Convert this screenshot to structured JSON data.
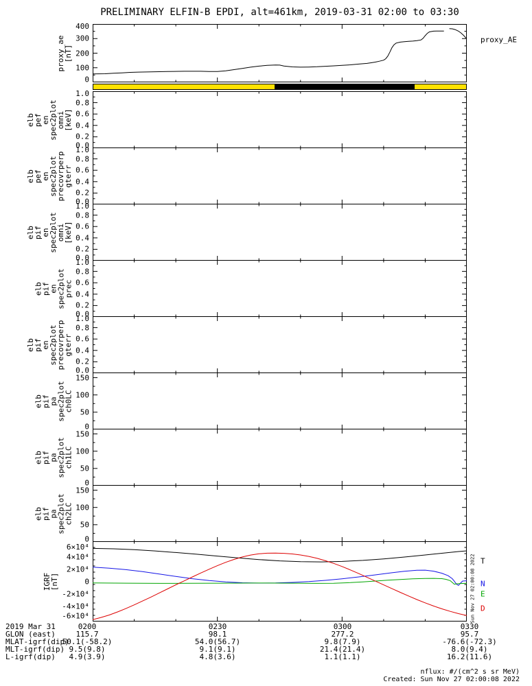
{
  "title": "PRELIMINARY ELFIN-B EPDI, alt=461km, 2019-03-31 02:00 to 03:30",
  "proxy_trace_label": "proxy_AE",
  "side_timestamp": "Sun Nov 27 02:00:08 2022",
  "colors": {
    "axis": "#000000",
    "zone_yellow": "#ffe200",
    "zone_black": "#000000",
    "trace_T": "#000000",
    "trace_N": "#1414e6",
    "trace_E": "#00a500",
    "trace_D": "#dd0000"
  },
  "x_axis": {
    "total_minutes": 90,
    "major_step_minutes": 30,
    "minor_step_minutes": 10,
    "tick_labels": [
      "0200",
      "0230",
      "0300",
      "0330"
    ]
  },
  "panels": [
    {
      "key": "proxy_ae",
      "ylabel": "proxy_ae\n[nT]",
      "ymin": 0,
      "ymax": 400,
      "yticks": [
        0,
        100,
        200,
        300,
        400
      ],
      "ytick_labels": [
        "0",
        "100",
        "200",
        "300",
        "400"
      ],
      "yminor_step": 50
    },
    {
      "key": "elb_pef_en_spec2plot_omni",
      "ylabel": "elb\npef\nen\nspec2plot\nomni\n[keV]",
      "ymin": 0,
      "ymax": 1,
      "yticks": [
        0,
        0.2,
        0.4,
        0.6,
        0.8,
        1
      ],
      "ytick_labels": [
        "0.0",
        "0.2",
        "0.4",
        "0.6",
        "0.8",
        "1.0"
      ],
      "yminor_step": 0.1
    },
    {
      "key": "elb_pef_en_spec2plot_precovrperp_gterr",
      "ylabel": "elb\npef\nen\nspec2plot\nprecovrperp\ngterr",
      "ymin": 0,
      "ymax": 1,
      "yticks": [
        0,
        0.2,
        0.4,
        0.6,
        0.8,
        1
      ],
      "ytick_labels": [
        "0.0",
        "0.2",
        "0.4",
        "0.6",
        "0.8",
        "1.0"
      ],
      "yminor_step": 0.1
    },
    {
      "key": "elb_pif_en_spec2plot_omni",
      "ylabel": "elb\npif\nen\nspec2plot\nomni\n[keV]",
      "ymin": 0,
      "ymax": 1,
      "yticks": [
        0,
        0.2,
        0.4,
        0.6,
        0.8,
        1
      ],
      "ytick_labels": [
        "0.0",
        "0.2",
        "0.4",
        "0.6",
        "0.8",
        "1.0"
      ],
      "yminor_step": 0.1
    },
    {
      "key": "elb_pif_en_spec2plot_prec",
      "ylabel": "elb\npif\nen\nspec2plot\nprec",
      "ymin": 0,
      "ymax": 1,
      "yticks": [
        0,
        0.2,
        0.4,
        0.6,
        0.8,
        1
      ],
      "ytick_labels": [
        "0.0",
        "0.2",
        "0.4",
        "0.6",
        "0.8",
        "1.0"
      ],
      "yminor_step": 0.1
    },
    {
      "key": "elb_pif_en_spec2plot_precovrperp_gterr",
      "ylabel": "elb\npif\nen\nspec2plot\nprecovrperp\ngterr",
      "ymin": 0,
      "ymax": 1,
      "yticks": [
        0,
        0.2,
        0.4,
        0.6,
        0.8,
        1
      ],
      "ytick_labels": [
        "0.0",
        "0.2",
        "0.4",
        "0.6",
        "0.8",
        "1.0"
      ],
      "yminor_step": 0.1
    },
    {
      "key": "elb_pif_pa_spec2plot_ch0LC",
      "ylabel": "elb\npif\npa\nspec2plot\nch0LC",
      "ymin": 0,
      "ymax": 165,
      "yticks": [
        0,
        50,
        100,
        150
      ],
      "ytick_labels": [
        "0",
        "50",
        "100",
        "150"
      ],
      "yminor_step": 25
    },
    {
      "key": "elb_pif_pa_spec2plot_ch1LC",
      "ylabel": "elb\npif\npa\nspec2plot\nch1LC",
      "ymin": 0,
      "ymax": 165,
      "yticks": [
        0,
        50,
        100,
        150
      ],
      "ytick_labels": [
        "0",
        "50",
        "100",
        "150"
      ],
      "yminor_step": 25
    },
    {
      "key": "elb_pif_pa_spec2plot_ch2LC",
      "ylabel": "elb\npif\npa\nspec2plot\nch2LC",
      "ymin": 0,
      "ymax": 165,
      "yticks": [
        0,
        50,
        100,
        150
      ],
      "ytick_labels": [
        "0",
        "50",
        "100",
        "150"
      ],
      "yminor_step": 25
    },
    {
      "key": "igrf",
      "ylabel": "IGRF\n[nT]",
      "ymin": -65000,
      "ymax": 65000,
      "yticks": [
        -60000,
        -40000,
        -20000,
        0,
        20000,
        40000,
        60000
      ],
      "ytick_labels": [
        "-6×10⁴",
        "-4×10⁴",
        "-2×10⁴",
        "0",
        "2×10⁴",
        "4×10⁴",
        "6×10⁴"
      ],
      "yminor_step": 10000
    }
  ],
  "zone_bar": {
    "segments": [
      {
        "start": 0,
        "end": 0.486,
        "color": "#ffe200"
      },
      {
        "start": 0.486,
        "end": 0.861,
        "color": "#000000"
      },
      {
        "start": 0.861,
        "end": 1,
        "color": "#ffe200"
      }
    ]
  },
  "igrf_trace_labels": [
    {
      "text": "T",
      "color": "#000000"
    },
    {
      "text": "N",
      "color": "#1414e6"
    },
    {
      "text": "E",
      "color": "#00a500"
    },
    {
      "text": "D",
      "color": "#dd0000"
    }
  ],
  "chart_data": [
    {
      "type": "line",
      "title": "proxy_AE",
      "ylabel": "proxy_ae [nT]",
      "ylim": [
        0,
        400
      ],
      "x_unit": "minutes after 02:00 UT, 2019-03-31",
      "xlim": [
        0,
        90
      ],
      "grid": false,
      "series": [
        {
          "name": "proxy_AE",
          "color": "#000000",
          "points": [
            [
              0,
              58
            ],
            [
              3,
              59
            ],
            [
              5,
              62
            ],
            [
              7,
              65
            ],
            [
              9,
              68
            ],
            [
              11,
              70
            ],
            [
              14,
              72
            ],
            [
              18,
              74
            ],
            [
              22,
              76
            ],
            [
              26,
              76
            ],
            [
              28,
              74
            ],
            [
              30,
              74
            ],
            [
              32,
              79
            ],
            [
              34,
              87
            ],
            [
              36,
              95
            ],
            [
              38,
              104
            ],
            [
              40,
              111
            ],
            [
              42,
              116
            ],
            [
              44,
              119
            ],
            [
              45,
              118
            ],
            [
              46,
              112
            ],
            [
              48,
              106
            ],
            [
              50,
              104
            ],
            [
              52,
              105
            ],
            [
              54,
              107
            ],
            [
              56,
              110
            ],
            [
              58,
              113
            ],
            [
              60,
              116
            ],
            [
              62,
              120
            ],
            [
              64,
              125
            ],
            [
              66,
              130
            ],
            [
              67,
              134
            ],
            [
              68,
              139
            ],
            [
              69,
              145
            ],
            [
              70,
              152
            ],
            [
              70.5,
              162
            ],
            [
              71,
              180
            ],
            [
              71.5,
              208
            ],
            [
              72,
              238
            ],
            [
              72.5,
              258
            ],
            [
              73,
              269
            ],
            [
              74,
              276
            ],
            [
              75,
              279
            ],
            [
              76,
              281
            ],
            [
              77,
              283
            ],
            [
              78,
              286
            ],
            [
              79,
              291
            ],
            [
              79.5,
              302
            ],
            [
              80,
              320
            ],
            [
              80.5,
              336
            ],
            [
              81,
              346
            ],
            [
              82,
              351
            ],
            [
              83,
              352
            ],
            [
              84.5,
              352
            ],
            null,
            [
              85.8,
              368
            ],
            [
              86.5,
              367
            ],
            [
              87.2,
              362
            ],
            [
              88,
              351
            ],
            [
              88.6,
              339
            ],
            [
              89.2,
              323
            ],
            [
              90,
              298
            ]
          ]
        }
      ]
    },
    {
      "type": "line",
      "title": "IGRF",
      "ylabel": "IGRF [nT]",
      "ylim": [
        -65000,
        65000
      ],
      "x_unit": "minutes after 02:00 UT, 2019-03-31",
      "xlim": [
        0,
        90
      ],
      "grid": false,
      "legend_position": "right",
      "series": [
        {
          "name": "T",
          "color": "#000000",
          "points": [
            [
              0,
              53500
            ],
            [
              5,
              52800
            ],
            [
              10,
              51300
            ],
            [
              15,
              49300
            ],
            [
              20,
              46800
            ],
            [
              25,
              44000
            ],
            [
              30,
              41000
            ],
            [
              35,
              38000
            ],
            [
              40,
              35300
            ],
            [
              45,
              33200
            ],
            [
              50,
              32000
            ],
            [
              55,
              31600
            ],
            [
              60,
              32300
            ],
            [
              65,
              34000
            ],
            [
              70,
              36400
            ],
            [
              75,
              39400
            ],
            [
              80,
              42800
            ],
            [
              85,
              46200
            ],
            [
              88,
              48300
            ],
            [
              90,
              49500
            ]
          ]
        },
        {
          "name": "N",
          "color": "#1414e6",
          "points": [
            [
              0,
              23000
            ],
            [
              4,
              21500
            ],
            [
              8,
              19000
            ],
            [
              12,
              15800
            ],
            [
              16,
              12000
            ],
            [
              20,
              8000
            ],
            [
              24,
              4300
            ],
            [
              28,
              1300
            ],
            [
              32,
              -900
            ],
            [
              36,
              -2200
            ],
            [
              40,
              -2800
            ],
            [
              44,
              -2600
            ],
            [
              48,
              -1700
            ],
            [
              52,
              -300
            ],
            [
              56,
              1700
            ],
            [
              60,
              4200
            ],
            [
              64,
              7200
            ],
            [
              68,
              10600
            ],
            [
              72,
              14000
            ],
            [
              75,
              16400
            ],
            [
              78,
              18000
            ],
            [
              80,
              18200
            ],
            [
              82,
              16600
            ],
            [
              84,
              13200
            ],
            [
              85.5,
              9200
            ],
            [
              86.5,
              4500
            ],
            [
              87,
              300
            ],
            [
              87.5,
              -4500
            ],
            [
              88,
              -6500
            ],
            [
              88.5,
              -2800
            ],
            [
              89,
              600
            ],
            [
              90,
              1000
            ]
          ]
        },
        {
          "name": "E",
          "color": "#00a500",
          "points": [
            [
              0,
              -2400
            ],
            [
              8,
              -2900
            ],
            [
              16,
              -3200
            ],
            [
              24,
              -3100
            ],
            [
              32,
              -2900
            ],
            [
              40,
              -2700
            ],
            [
              48,
              -2900
            ],
            [
              54,
              -3200
            ],
            [
              58,
              -3000
            ],
            [
              62,
              -2000
            ],
            [
              65,
              -800
            ],
            [
              68,
              600
            ],
            [
              71,
              1900
            ],
            [
              74,
              3100
            ],
            [
              77,
              4100
            ],
            [
              80,
              4700
            ],
            [
              82,
              4900
            ],
            [
              84,
              4400
            ],
            [
              85,
              3300
            ],
            [
              86,
              1200
            ],
            [
              86.6,
              -2200
            ],
            [
              87,
              -4600
            ],
            [
              87.6,
              -3900
            ],
            [
              88.5,
              -3400
            ],
            [
              90,
              -3100
            ]
          ]
        },
        {
          "name": "D",
          "color": "#dd0000",
          "points": [
            [
              0,
              -62000
            ],
            [
              2,
              -58500
            ],
            [
              4,
              -54500
            ],
            [
              6,
              -49500
            ],
            [
              8,
              -44000
            ],
            [
              10,
              -38000
            ],
            [
              12,
              -31800
            ],
            [
              14,
              -25400
            ],
            [
              16,
              -18800
            ],
            [
              18,
              -12200
            ],
            [
              20,
              -5600
            ],
            [
              22,
              800
            ],
            [
              24,
              7200
            ],
            [
              26,
              13600
            ],
            [
              28,
              19700
            ],
            [
              30,
              25500
            ],
            [
              32,
              30900
            ],
            [
              34,
              35600
            ],
            [
              36,
              39600
            ],
            [
              38,
              42700
            ],
            [
              40,
              44700
            ],
            [
              42,
              45700
            ],
            [
              44,
              45900
            ],
            [
              46,
              45500
            ],
            [
              48,
              44400
            ],
            [
              50,
              42800
            ],
            [
              52,
              40400
            ],
            [
              54,
              37300
            ],
            [
              56,
              33500
            ],
            [
              58,
              29100
            ],
            [
              60,
              24100
            ],
            [
              62,
              18600
            ],
            [
              64,
              12700
            ],
            [
              66,
              6600
            ],
            [
              68,
              500
            ],
            [
              70,
              -5700
            ],
            [
              72,
              -11800
            ],
            [
              74,
              -17800
            ],
            [
              76,
              -23700
            ],
            [
              78,
              -29400
            ],
            [
              80,
              -34800
            ],
            [
              82,
              -39900
            ],
            [
              84,
              -44500
            ],
            [
              86,
              -48600
            ],
            [
              88,
              -52200
            ],
            [
              90,
              -55200
            ]
          ]
        }
      ]
    }
  ],
  "bottom_table": {
    "rows": [
      {
        "label": "2019 Mar 31",
        "values": [
          "0200",
          "0230",
          "0300",
          "0330"
        ]
      },
      {
        "label": "GLON (east)",
        "values": [
          "115.7",
          "98.1",
          "277.2",
          "95.7"
        ]
      },
      {
        "label": "MLAT-igrf(dip)",
        "values": [
          "50.1(-58.2)",
          "54.0(56.7)",
          "9.8(7.9)",
          "-76.6(-72.3)"
        ]
      },
      {
        "label": "MLT-igrf(dip)",
        "values": [
          "9.5(9.8)",
          "9.1(9.1)",
          "21.4(21.4)",
          "8.0(9.4)"
        ]
      },
      {
        "label": "L-igrf(dip)",
        "values": [
          "4.9(3.9)",
          "4.8(3.6)",
          "1.1(1.1)",
          "16.2(11.6)"
        ]
      }
    ]
  },
  "footer": {
    "nflux": "nflux: #/(cm^2 s sr MeV)",
    "created": "Created: Sun Nov 27 02:00:08 2022"
  }
}
